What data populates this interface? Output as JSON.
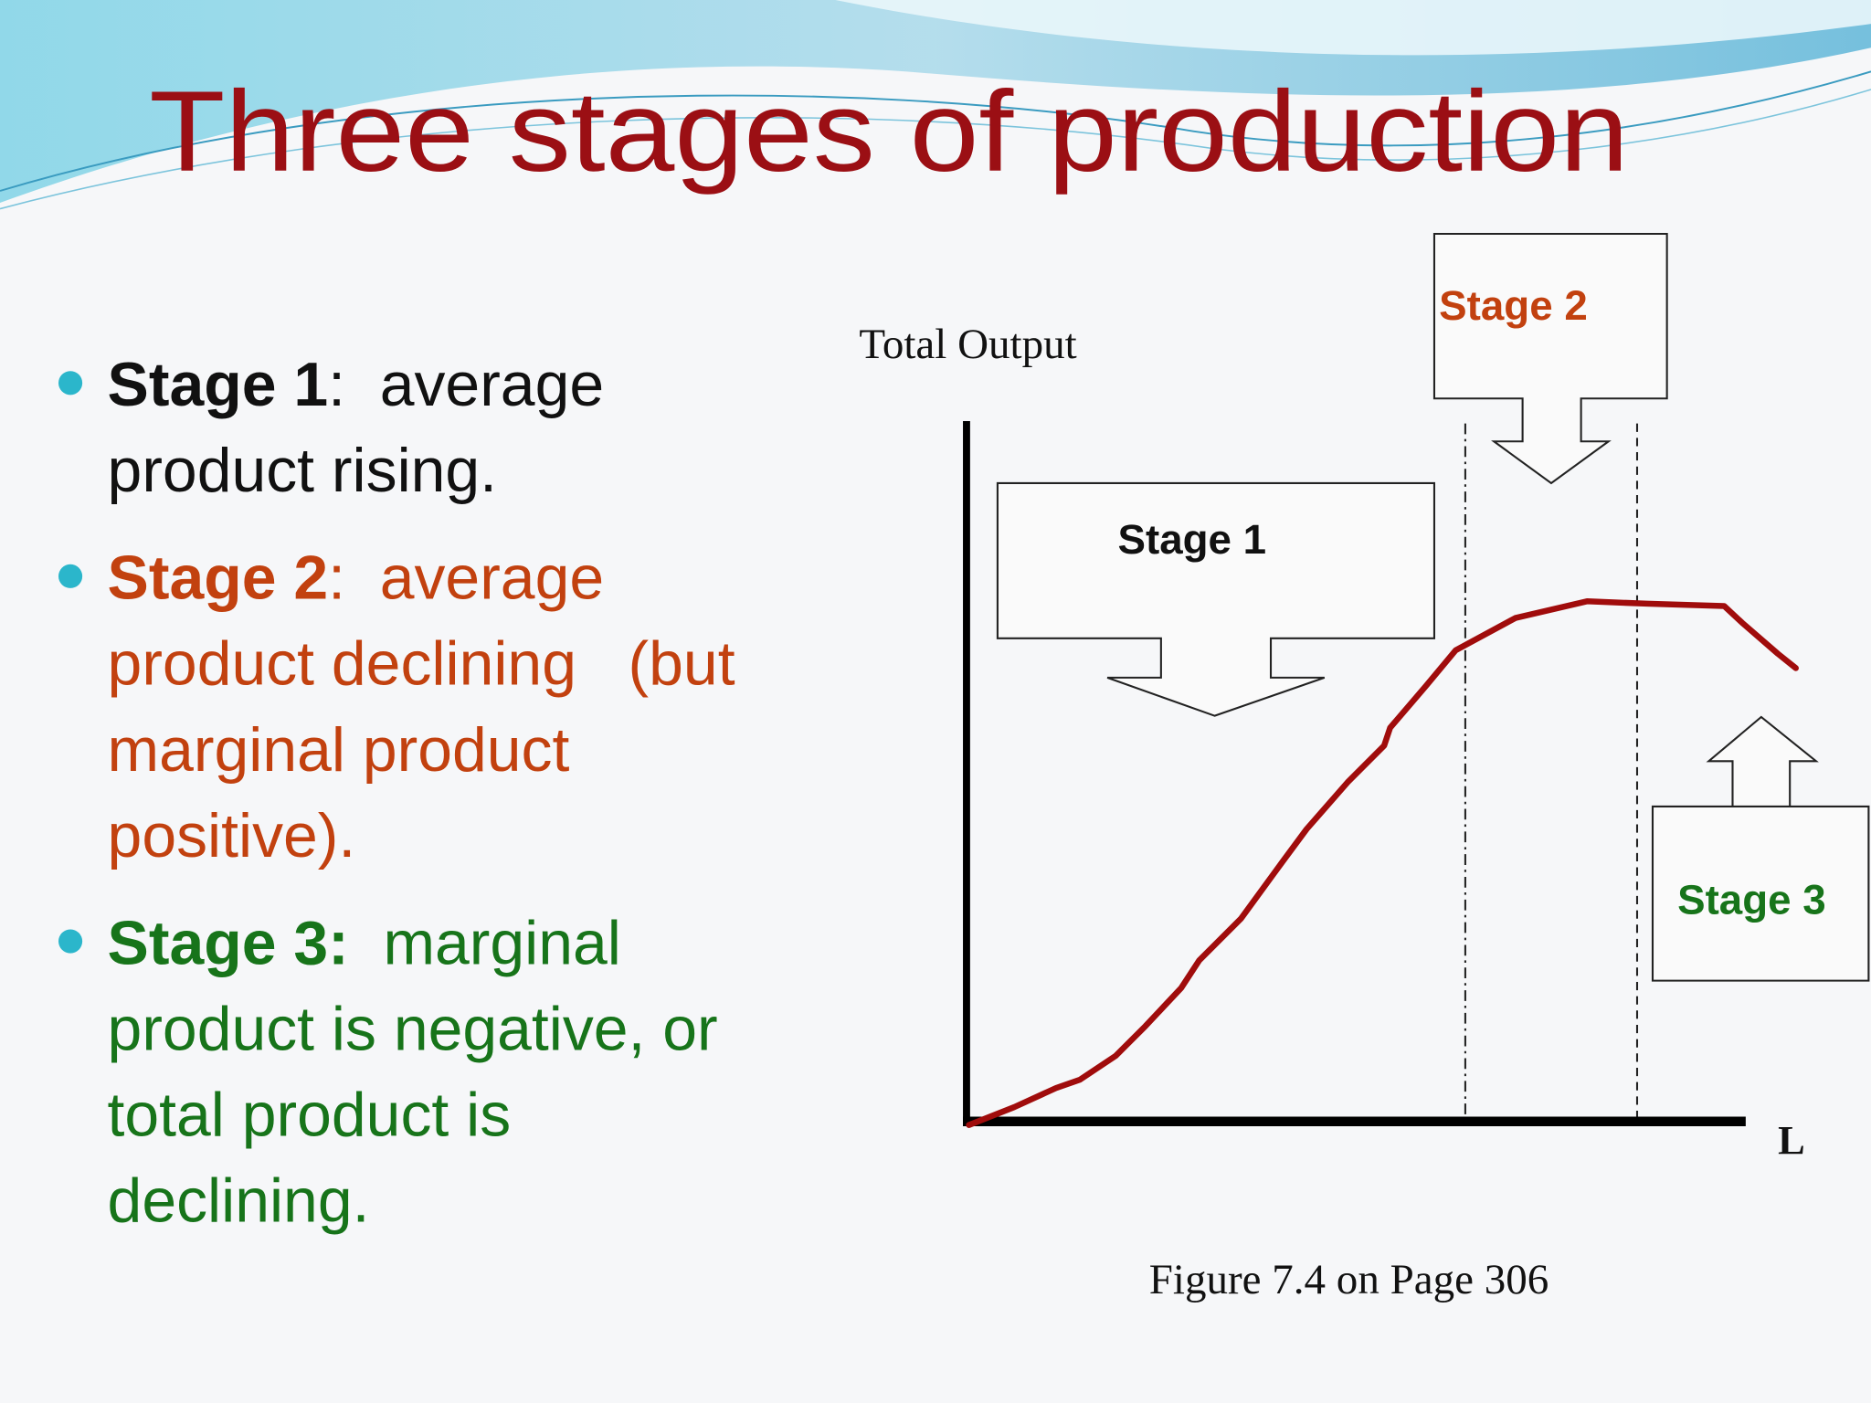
{
  "title": "Three stages of production",
  "bullets": [
    {
      "label": "Stage 1",
      "lines": [
        ":  average",
        "product rising."
      ],
      "color": "#111111"
    },
    {
      "label": "Stage 2",
      "lines": [
        ":  average",
        "product declining   (but",
        "marginal product",
        "positive)."
      ],
      "color": "#c2410f"
    },
    {
      "label": "Stage 3:",
      "lines": [
        "  marginal",
        "product is negative, or",
        "total product is",
        "declining."
      ],
      "color": "#17741a"
    }
  ],
  "diagram": {
    "y_axis_label": "Total Output",
    "x_axis_label": "L",
    "callouts": [
      {
        "label": "Stage 1",
        "color": "#111111"
      },
      {
        "label": "Stage 2",
        "color": "#c2410f"
      },
      {
        "label": "Stage 3",
        "color": "#17741a"
      }
    ],
    "caption": "Figure 7.4 on Page 306"
  }
}
